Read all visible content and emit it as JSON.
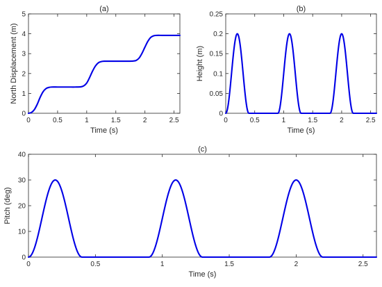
{
  "line_color": "#0000e6",
  "chart_data": [
    {
      "id": "a",
      "type": "line",
      "title": "(a)",
      "xlabel": "Time (s)",
      "ylabel": "North Displacement (m)",
      "xlim": [
        0,
        2.6
      ],
      "ylim": [
        0,
        5
      ],
      "xticks": [
        0,
        0.5,
        1,
        1.5,
        2,
        2.5
      ],
      "xtick_labels": [
        "0",
        "0.5",
        "1",
        "1.5",
        "2",
        "2.5"
      ],
      "yticks": [
        0,
        1,
        2,
        3,
        4,
        5
      ],
      "ytick_labels": [
        "0",
        "1",
        "2",
        "3",
        "4",
        "5"
      ],
      "grid": false,
      "x": [
        0,
        0.05,
        0.1,
        0.15,
        0.2,
        0.25,
        0.3,
        0.35,
        0.4,
        0.5,
        0.6,
        0.7,
        0.8,
        0.9,
        0.95,
        1.0,
        1.05,
        1.1,
        1.15,
        1.2,
        1.25,
        1.3,
        1.4,
        1.5,
        1.6,
        1.7,
        1.8,
        1.85,
        1.9,
        1.95,
        2.0,
        2.05,
        2.1,
        2.15,
        2.2,
        2.3,
        2.4,
        2.5,
        2.6
      ],
      "y": [
        0,
        0.04,
        0.18,
        0.45,
        0.8,
        1.08,
        1.24,
        1.3,
        1.32,
        1.32,
        1.32,
        1.32,
        1.32,
        1.33,
        1.38,
        1.52,
        1.8,
        2.12,
        2.38,
        2.54,
        2.6,
        2.62,
        2.62,
        2.62,
        2.62,
        2.62,
        2.63,
        2.66,
        2.78,
        3.02,
        3.33,
        3.62,
        3.82,
        3.9,
        3.92,
        3.92,
        3.92,
        3.92,
        3.92
      ]
    },
    {
      "id": "b",
      "type": "line",
      "title": "(b)",
      "xlabel": "Time (s)",
      "ylabel": "Height (m)",
      "xlim": [
        0,
        2.6
      ],
      "ylim": [
        0,
        0.25
      ],
      "xticks": [
        0,
        0.5,
        1,
        1.5,
        2,
        2.5
      ],
      "xtick_labels": [
        "0",
        "0.5",
        "1",
        "1.5",
        "2",
        "2.5"
      ],
      "yticks": [
        0,
        0.05,
        0.1,
        0.15,
        0.2,
        0.25
      ],
      "ytick_labels": [
        "0",
        "0.05",
        "0.1",
        "0.15",
        "0.2",
        "0.25"
      ],
      "grid": false,
      "pulses": [
        {
          "start": 0.0,
          "end": 0.4,
          "peak": 0.2
        },
        {
          "start": 0.9,
          "end": 1.3,
          "peak": 0.2
        },
        {
          "start": 1.8,
          "end": 2.2,
          "peak": 0.2
        }
      ]
    },
    {
      "id": "c",
      "type": "line",
      "title": "(c)",
      "xlabel": "Time (s)",
      "ylabel": "Pitch (deg)",
      "xlim": [
        0,
        2.6
      ],
      "ylim": [
        0,
        40
      ],
      "xticks": [
        0,
        0.5,
        1,
        1.5,
        2,
        2.5
      ],
      "xtick_labels": [
        "0",
        "0.5",
        "1",
        "1.5",
        "2",
        "2.5"
      ],
      "yticks": [
        0,
        10,
        20,
        30,
        40
      ],
      "ytick_labels": [
        "0",
        "10",
        "20",
        "30",
        "40"
      ],
      "grid": false,
      "pulses": [
        {
          "start": 0.0,
          "end": 0.4,
          "peak": 30
        },
        {
          "start": 0.9,
          "end": 1.3,
          "peak": 30
        },
        {
          "start": 1.8,
          "end": 2.2,
          "peak": 30
        }
      ]
    }
  ]
}
